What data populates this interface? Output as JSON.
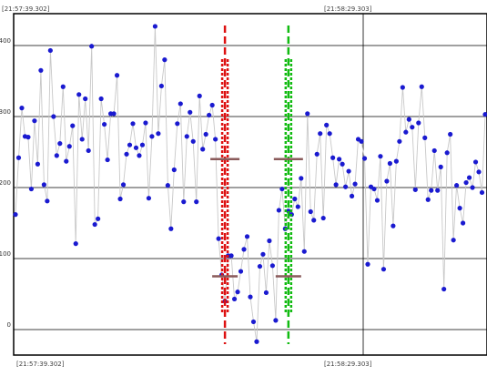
{
  "chart_data": {
    "type": "scatter",
    "title": "",
    "xlabel": "",
    "ylabel": "",
    "ylim": [
      -20,
      440
    ],
    "y_ticks": [
      0,
      100,
      200,
      300,
      400
    ],
    "time_labels": {
      "top_left": "[21:57:39.302]",
      "top_mid": "[21:58:29.303]",
      "bottom_left": "[21:57:39.302]",
      "bottom_mid": "[21:58:29.303]"
    },
    "grid": true,
    "connect_points": true,
    "colors": {
      "points": "#1a1ad0",
      "connector": "#c8c8c8",
      "grid": "#000000",
      "cursor_a": "#dd1111",
      "cursor_b": "#11bb11",
      "level_marker": "#8a5a5a"
    },
    "values": [
      162,
      242,
      312,
      272,
      271,
      198,
      294,
      233,
      365,
      204,
      181,
      393,
      300,
      245,
      262,
      342,
      237,
      258,
      287,
      121,
      331,
      268,
      325,
      252,
      399,
      148,
      156,
      325,
      289,
      239,
      304,
      304,
      358,
      184,
      204,
      247,
      260,
      290,
      256,
      245,
      260,
      291,
      185,
      272,
      427,
      276,
      343,
      380,
      203,
      142,
      225,
      290,
      318,
      180,
      272,
      306,
      265,
      180,
      329,
      254,
      275,
      302,
      316,
      268,
      128,
      77,
      40,
      104,
      104,
      43,
      53,
      82,
      113,
      131,
      46,
      11,
      -17,
      89,
      106,
      52,
      125,
      90,
      13,
      168,
      198,
      142,
      167,
      162,
      184,
      173,
      213,
      110,
      304,
      166,
      154,
      247,
      276,
      157,
      288,
      276,
      242,
      204,
      240,
      233,
      201,
      223,
      188,
      205,
      268,
      265,
      241,
      92,
      201,
      198,
      182,
      244,
      85,
      209,
      234,
      146,
      237,
      265,
      341,
      278,
      296,
      285,
      197,
      291,
      342,
      270,
      183,
      196,
      252,
      196,
      229,
      57,
      249,
      275,
      126,
      203,
      171,
      150,
      207,
      214,
      200,
      236,
      222,
      193,
      303
    ],
    "cursors": [
      {
        "id": "red",
        "x_index": 66,
        "level_low": 75,
        "level_high": 240
      },
      {
        "id": "green",
        "x_index": 86,
        "level_low": 75,
        "level_high": 240
      }
    ]
  }
}
